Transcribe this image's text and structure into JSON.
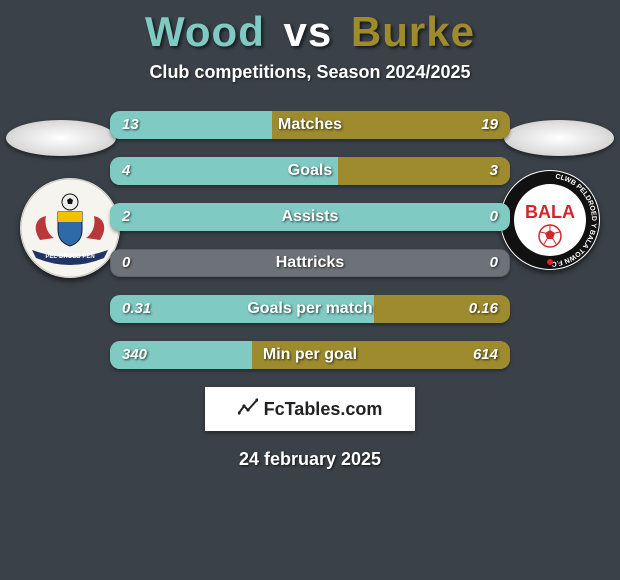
{
  "title": {
    "player1": "Wood",
    "vs": "vs",
    "player2": "Burke"
  },
  "subtitle": "Club competitions, Season 2024/2025",
  "colors": {
    "player1": "#7fcac3",
    "player2": "#9d8b2e",
    "bar_neutral": "#6d7278",
    "title_p1": "#7fcac3",
    "title_vs": "#ffffff",
    "title_p2": "#9d8b2e"
  },
  "stats": [
    {
      "label": "Matches",
      "left_value": "13",
      "right_value": "19",
      "left_pct": 40.6,
      "right_pct": 59.4
    },
    {
      "label": "Goals",
      "left_value": "4",
      "right_value": "3",
      "left_pct": 57.1,
      "right_pct": 42.9
    },
    {
      "label": "Assists",
      "left_value": "2",
      "right_value": "0",
      "left_pct": 100,
      "right_pct": 0
    },
    {
      "label": "Hattricks",
      "left_value": "0",
      "right_value": "0",
      "left_pct": 0,
      "right_pct": 0
    },
    {
      "label": "Goals per match",
      "left_value": "0.31",
      "right_value": "0.16",
      "left_pct": 65.9,
      "right_pct": 34.1
    },
    {
      "label": "Min per goal",
      "left_value": "340",
      "right_value": "614",
      "left_pct": 35.6,
      "right_pct": 64.4
    }
  ],
  "crest_left": {
    "ring_text_top": "",
    "label": "PÊL-DROED PEN",
    "shield_main": "#b7373a",
    "shield_accent": "#2e6aa8",
    "ball": "#111"
  },
  "crest_right": {
    "ring_outer": "#111",
    "ring_text": "CLWB PELDROED Y BALA TOWN F.C.",
    "center_bg": "#fff",
    "word": "BALA",
    "word_color": "#d4252a",
    "ball_color": "#d4252a"
  },
  "branding": {
    "text": "FcTables.com"
  },
  "date": "24 february 2025"
}
